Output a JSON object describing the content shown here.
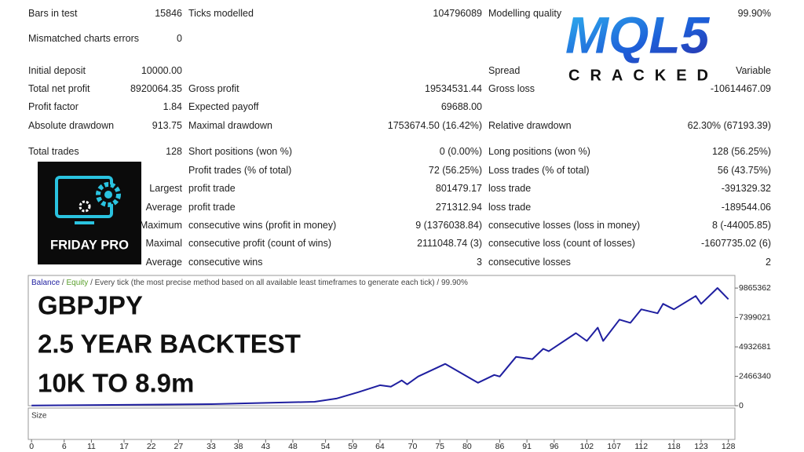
{
  "report": {
    "summary": [
      [
        "Bars in test",
        "15846",
        "Ticks modelled",
        "104796089",
        "Modelling quality",
        "99.90%"
      ],
      [
        "Mismatched charts errors",
        "0",
        null,
        null,
        null,
        null
      ],
      [
        "Initial deposit",
        "10000.00",
        null,
        null,
        "Spread",
        "Variable"
      ],
      [
        "Total net profit",
        "8920064.35",
        "Gross profit",
        "19534531.44",
        "Gross loss",
        "-10614467.09"
      ],
      [
        "Profit factor",
        "1.84",
        "Expected payoff",
        "69688.00",
        null,
        null
      ],
      [
        "Absolute drawdown",
        "913.75",
        "Maximal drawdown",
        "1753674.50 (16.42%)",
        "Relative drawdown",
        "62.30% (67193.39)"
      ],
      [
        "Total trades",
        "128",
        "Short positions (won %)",
        "0 (0.00%)",
        "Long positions (won %)",
        "128 (56.25%)"
      ]
    ],
    "trades": [
      [
        null,
        "Profit trades (% of total)",
        "72 (56.25%)",
        "Loss trades (% of total)",
        "56 (43.75%)"
      ],
      [
        "Largest",
        "profit trade",
        "801479.17",
        "loss trade",
        "-391329.32"
      ],
      [
        "Average",
        "profit trade",
        "271312.94",
        "loss trade",
        "-189544.06"
      ],
      [
        "Maximum",
        "consecutive wins (profit in money)",
        "9 (1376038.84)",
        "consecutive losses (loss in money)",
        "8 (-44005.85)"
      ],
      [
        "Maximal",
        "consecutive profit (count of wins)",
        "2111048.74 (3)",
        "consecutive loss (count of losses)",
        "-1607735.02 (6)"
      ],
      [
        "Average",
        "consecutive wins",
        "3",
        "consecutive losses",
        "2"
      ]
    ]
  },
  "logos": {
    "mql5": "MQL5",
    "cracked": "CRACKED",
    "friday_pro": "FRIDAY PRO"
  },
  "overlay": [
    "GBPJPY",
    "2.5 YEAR BACKTEST",
    "10K TO 8.9m"
  ],
  "chart_data": {
    "type": "line",
    "separator": "/",
    "equity_label": "Equity",
    "equity_color": "#5aa02c",
    "subtitle": "Every tick (the most precise method based on all available least timeframes to generate each tick)",
    "quality": "99.90%",
    "size_label": "Size",
    "x": [
      0,
      33,
      52,
      56,
      60,
      64,
      66,
      68,
      69,
      71,
      76,
      82,
      85,
      86,
      89,
      92,
      94,
      95,
      100,
      102,
      104,
      105,
      108,
      110,
      112,
      115,
      116,
      118,
      122,
      123,
      126,
      128
    ],
    "series": [
      {
        "name": "Balance",
        "color": "#1f1fa0",
        "values": [
          10000,
          130000,
          330000,
          600000,
          1130000,
          1720000,
          1590000,
          2120000,
          1790000,
          2450000,
          3510000,
          1920000,
          2580000,
          2450000,
          4100000,
          3910000,
          4770000,
          4570000,
          6090000,
          5430000,
          6550000,
          5430000,
          7220000,
          6950000,
          8080000,
          7750000,
          8540000,
          8080000,
          9200000,
          8540000,
          9870000,
          8930064
        ]
      }
    ],
    "xlim": [
      -0.6,
      129.2
    ],
    "xticks": [
      0,
      6,
      11,
      17,
      22,
      27,
      33,
      38,
      43,
      48,
      54,
      59,
      64,
      70,
      75,
      80,
      86,
      91,
      96,
      102,
      107,
      112,
      118,
      123,
      128
    ],
    "ylim": [
      0,
      10924000
    ],
    "yticks": [
      0,
      2466340,
      4932681,
      7399021,
      9865362
    ]
  }
}
